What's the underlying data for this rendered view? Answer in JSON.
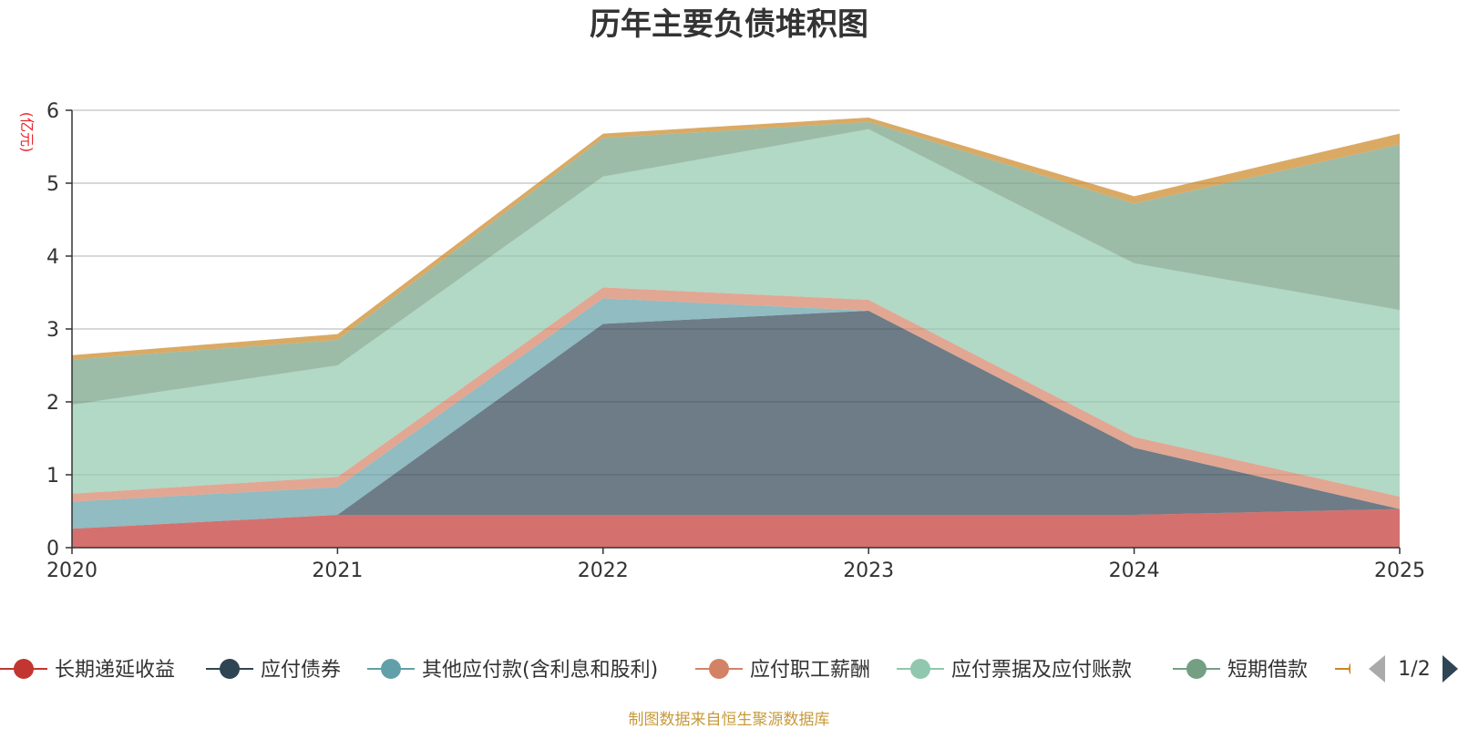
{
  "chart_data": {
    "type": "area",
    "title": "历年主要负债堆积图",
    "unit": "(亿元)",
    "x": [
      "2020",
      "2021",
      "2022",
      "2023",
      "2024",
      "2025"
    ],
    "ylim": [
      0,
      6
    ],
    "yticks": [
      "0",
      "1",
      "2",
      "3",
      "4",
      "5",
      "6"
    ],
    "grid": true,
    "stacked": true,
    "series": [
      {
        "name": "长期递延收益",
        "color": "#c23531",
        "values": [
          0.26,
          0.45,
          0.45,
          0.45,
          0.45,
          0.53
        ]
      },
      {
        "name": "应付债券",
        "color": "#2f4554",
        "values": [
          0.0,
          0.0,
          2.62,
          2.8,
          0.92,
          0.0
        ]
      },
      {
        "name": "其他应付款(含利息和股利)",
        "color": "#61a0a8",
        "values": [
          0.37,
          0.38,
          0.35,
          0.0,
          0.0,
          0.0
        ]
      },
      {
        "name": "应付职工薪酬",
        "color": "#d48265",
        "values": [
          0.11,
          0.14,
          0.15,
          0.15,
          0.15,
          0.17
        ]
      },
      {
        "name": "应付票据及应付账款",
        "color": "#91c7ae",
        "values": [
          1.22,
          1.53,
          1.52,
          2.34,
          2.38,
          2.56
        ]
      },
      {
        "name": "短期借款",
        "color": "#749f83",
        "values": [
          0.62,
          0.35,
          0.53,
          0.1,
          0.82,
          2.27
        ]
      },
      {
        "name": "",
        "color": "#ca8622",
        "values": [
          0.06,
          0.08,
          0.06,
          0.06,
          0.1,
          0.15
        ]
      }
    ],
    "legend_position": "bottom",
    "legend_page": "1/2"
  },
  "footer": "制图数据来自恒生聚源数据库"
}
